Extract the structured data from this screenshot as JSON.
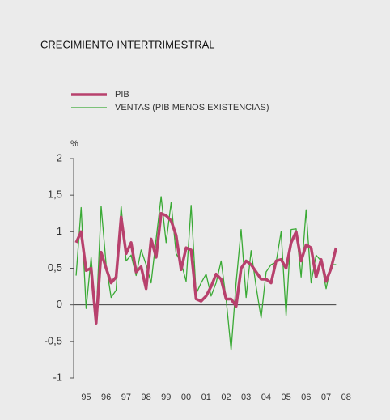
{
  "chart_data": {
    "type": "line",
    "title": "CRECIMIENTO INTERTRIMESTRAL",
    "y_label": "%",
    "x": [
      1995,
      1995.25,
      1995.5,
      1995.75,
      1996,
      1996.25,
      1996.5,
      1996.75,
      1997,
      1997.25,
      1997.5,
      1997.75,
      1998,
      1998.25,
      1998.5,
      1998.75,
      1999,
      1999.25,
      1999.5,
      1999.75,
      2000,
      2000.25,
      2000.5,
      2000.75,
      2001,
      2001.25,
      2001.5,
      2001.75,
      2002,
      2002.25,
      2002.5,
      2002.75,
      2003,
      2003.25,
      2003.5,
      2003.75,
      2004,
      2004.25,
      2004.5,
      2004.75,
      2005,
      2005.25,
      2005.5,
      2005.75,
      2006,
      2006.25,
      2006.5,
      2006.75,
      2007,
      2007.25,
      2007.5,
      2007.75,
      2008
    ],
    "series": [
      {
        "name": "PIB",
        "color": "#b8416d",
        "width": 3.5,
        "values": [
          0.85,
          1.0,
          0.47,
          0.5,
          -0.25,
          0.72,
          0.5,
          0.3,
          0.38,
          1.2,
          0.7,
          0.85,
          0.45,
          0.52,
          0.22,
          0.9,
          0.65,
          1.25,
          1.22,
          1.15,
          0.95,
          0.48,
          0.78,
          0.75,
          0.08,
          0.05,
          0.12,
          0.25,
          0.42,
          0.35,
          0.08,
          0.08,
          -0.02,
          0.5,
          0.6,
          0.55,
          0.45,
          0.35,
          0.35,
          0.3,
          0.6,
          0.62,
          0.5,
          0.85,
          1.0,
          0.6,
          0.82,
          0.78,
          0.38,
          0.62,
          0.32,
          0.5,
          0.78
        ]
      },
      {
        "name": "VENTAS (PIB MENOS EXISTENCIAS)",
        "color": "#3aaa35",
        "width": 1.3,
        "values": [
          0.4,
          1.33,
          -0.05,
          0.65,
          -0.2,
          1.35,
          0.55,
          0.1,
          0.2,
          1.35,
          0.6,
          0.68,
          0.4,
          0.75,
          0.55,
          0.3,
          0.9,
          1.48,
          0.85,
          1.4,
          0.7,
          0.58,
          0.32,
          1.36,
          0.15,
          0.3,
          0.42,
          0.12,
          0.3,
          0.6,
          0.08,
          -0.62,
          0.3,
          1.03,
          0.1,
          0.74,
          0.25,
          -0.18,
          0.45,
          0.55,
          0.58,
          1.0,
          -0.15,
          1.03,
          1.04,
          0.38,
          1.3,
          0.3,
          0.68,
          0.6,
          0.22,
          0.55,
          0.55
        ]
      }
    ],
    "xlim": [
      1994.875,
      2008.875
    ],
    "xticks": [
      {
        "value": 1995.5,
        "label": "95"
      },
      {
        "value": 1996.5,
        "label": "96"
      },
      {
        "value": 1997.5,
        "label": "97"
      },
      {
        "value": 1998.5,
        "label": "98"
      },
      {
        "value": 1999.5,
        "label": "99"
      },
      {
        "value": 2000.5,
        "label": "00"
      },
      {
        "value": 2001.5,
        "label": "01"
      },
      {
        "value": 2002.5,
        "label": "02"
      },
      {
        "value": 2003.5,
        "label": "03"
      },
      {
        "value": 2004.5,
        "label": "04"
      },
      {
        "value": 2005.5,
        "label": "05"
      },
      {
        "value": 2006.5,
        "label": "06"
      },
      {
        "value": 2007.5,
        "label": "07"
      },
      {
        "value": 2008.5,
        "label": "08"
      }
    ],
    "ylim": [
      -1,
      2
    ],
    "yticks": [
      {
        "value": -1,
        "label": "-1"
      },
      {
        "value": -0.5,
        "label": "-0,5"
      },
      {
        "value": 0,
        "label": "0"
      },
      {
        "value": 0.5,
        "label": "0,5"
      },
      {
        "value": 1,
        "label": "1"
      },
      {
        "value": 1.5,
        "label": "1,5"
      },
      {
        "value": 2,
        "label": "2"
      }
    ]
  }
}
